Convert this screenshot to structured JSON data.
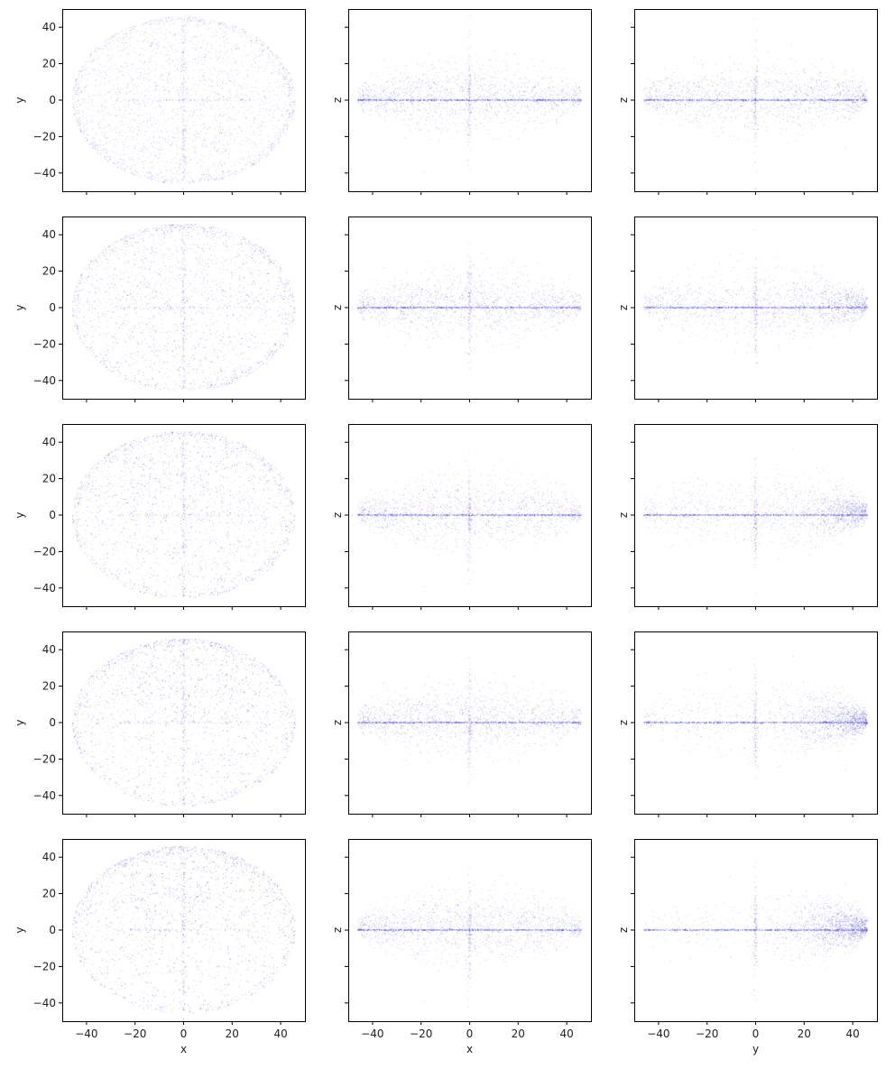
{
  "chart_data": {
    "type": "scatter",
    "layout": "5 rows x 3 columns, shared x axis per column, shared y axis per row",
    "point_color": "#1a10c8",
    "point_opacity": 0.12,
    "xlim": [
      -50,
      50
    ],
    "ylim": [
      -50,
      50
    ],
    "x_ticks": [
      -40,
      -20,
      0,
      20,
      40
    ],
    "y_ticks": [
      -40,
      -20,
      0,
      20,
      40
    ],
    "x_tick_labels": [
      "−40",
      "−20",
      "0",
      "20",
      "40"
    ],
    "y_tick_labels": [
      "−40",
      "−20",
      "0",
      "20",
      "40"
    ],
    "grid": false,
    "columns": [
      {
        "x_label": "x",
        "y_label": "y",
        "projection": "x-y",
        "description": "disk of radius ~46, denser ring edge"
      },
      {
        "x_label": "x",
        "y_label": "z",
        "projection": "x-z",
        "description": "thin dense line at z=0 with diffuse scatter |z|<~30"
      },
      {
        "x_label": "y",
        "y_label": "z",
        "projection": "y-z",
        "description": "thin dense line at z=0, scatter concentrating toward y=+40 in later rows"
      }
    ],
    "panels": [
      {
        "row": 0,
        "col": 0,
        "skew": 0.0
      },
      {
        "row": 0,
        "col": 1,
        "skew": 0.0
      },
      {
        "row": 0,
        "col": 2,
        "skew": 0.1
      },
      {
        "row": 1,
        "col": 0,
        "skew": 0.15
      },
      {
        "row": 1,
        "col": 1,
        "skew": 0.1
      },
      {
        "row": 1,
        "col": 2,
        "skew": 0.3
      },
      {
        "row": 2,
        "col": 0,
        "skew": 0.3
      },
      {
        "row": 2,
        "col": 1,
        "skew": 0.2
      },
      {
        "row": 2,
        "col": 2,
        "skew": 0.5
      },
      {
        "row": 3,
        "col": 0,
        "skew": 0.45
      },
      {
        "row": 3,
        "col": 1,
        "skew": 0.3
      },
      {
        "row": 3,
        "col": 2,
        "skew": 0.7
      },
      {
        "row": 4,
        "col": 0,
        "skew": 0.6
      },
      {
        "row": 4,
        "col": 1,
        "skew": 0.4
      },
      {
        "row": 4,
        "col": 2,
        "skew": 0.85
      }
    ]
  }
}
